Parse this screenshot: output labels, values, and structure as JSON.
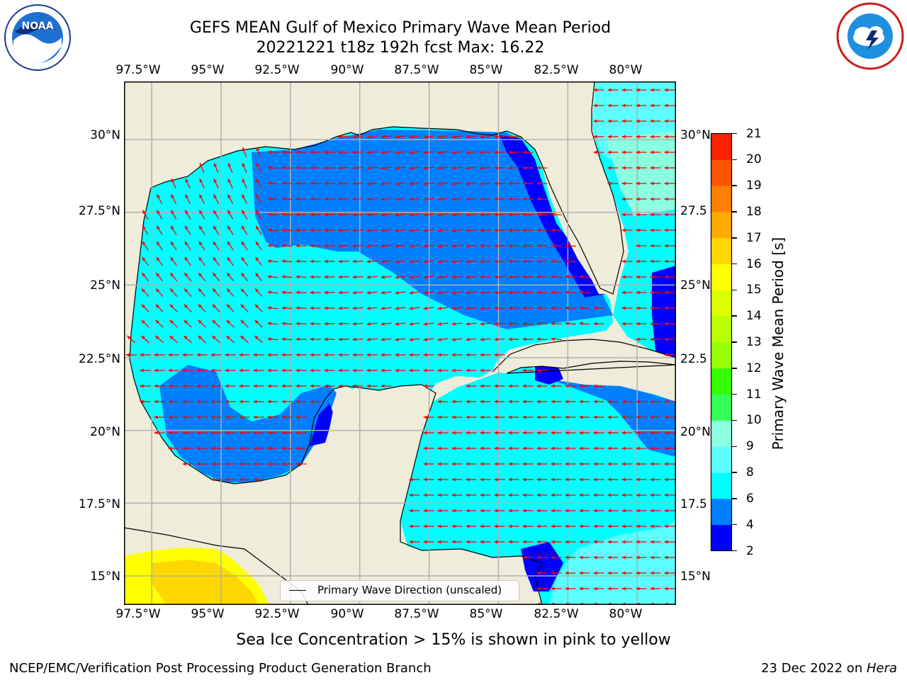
{
  "title": {
    "line1": "GEFS MEAN Gulf of Mexico Primary Wave Mean Period",
    "line2": "20221221 t18z 192h fcst   Max: 16.22"
  },
  "logos": {
    "left": {
      "icon": "noaa-logo",
      "text": "NOAA"
    },
    "right": {
      "icon": "national-weather-service-logo"
    }
  },
  "map": {
    "lon_range": [
      -98.5,
      -78.6
    ],
    "lat_range": [
      14.0,
      32.0
    ],
    "lon_ticks": [
      "97.5°W",
      "95°W",
      "92.5°W",
      "90°W",
      "87.5°W",
      "85°W",
      "82.5°W",
      "80°W"
    ],
    "lat_ticks_left": [
      "30°N",
      "27.5°N",
      "25°N",
      "22.5°N",
      "20°N",
      "17.5°N",
      "15°N"
    ],
    "lat_ticks_right": [
      "30°N",
      "27.5",
      "25°N",
      "22.5",
      "20°N",
      "17.5",
      "15°N"
    ],
    "colors": {
      "land": "#efecda",
      "coast": "#000000",
      "grid": "#b0b0b0",
      "arrow": "#ff0000",
      "band_2_4": "#0000ff",
      "band_4_6": "#007fff",
      "band_6_8": "#00ffff",
      "band_8_9": "#5cffff",
      "band_9_10": "#8cffe0",
      "band_15_16": "#ffff00",
      "band_16_17": "#ffd700"
    },
    "legend": "Primary Wave Direction (unscaled)"
  },
  "colorbar": {
    "label": "Primary Wave Mean Period [s]",
    "ticks": [
      "2",
      "4",
      "6",
      "8",
      "9",
      "10",
      "11",
      "12",
      "13",
      "14",
      "15",
      "16",
      "17",
      "18",
      "19",
      "20",
      "21"
    ],
    "colors": [
      "#0000ff",
      "#007fff",
      "#00ffff",
      "#5cffff",
      "#8cffe0",
      "#33ff55",
      "#33ff00",
      "#99ff00",
      "#bbff00",
      "#ddff00",
      "#ffff00",
      "#ffd700",
      "#ffaa00",
      "#ff8000",
      "#ff5500",
      "#ff2200",
      "#ff0000"
    ]
  },
  "footnote": "Sea Ice Concentration > 15% is shown in pink to yellow",
  "credit_left": "NCEP/EMC/Verification Post Processing Product Generation Branch",
  "credit_right_date": "23 Dec 2022 on ",
  "credit_right_host": "Hera"
}
